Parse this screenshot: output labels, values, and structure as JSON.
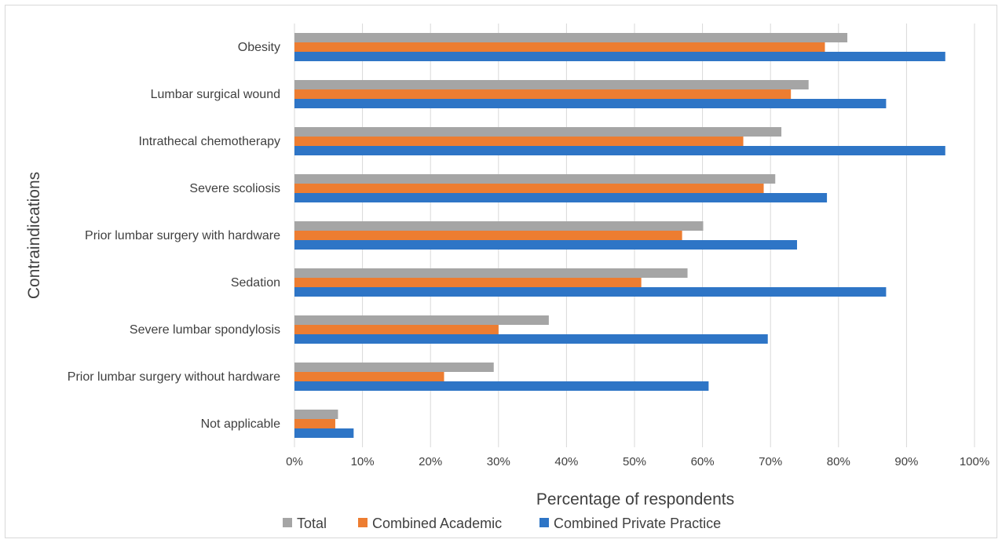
{
  "chart_data": {
    "type": "bar",
    "orientation": "horizontal",
    "title": "",
    "xlabel": "Percentage of respondents",
    "ylabel": "Contraindications",
    "xlim": [
      0,
      100
    ],
    "x_ticks": [
      "0%",
      "10%",
      "20%",
      "30%",
      "40%",
      "50%",
      "60%",
      "70%",
      "80%",
      "90%",
      "100%"
    ],
    "categories": [
      "Obesity",
      "Lumbar surgical wound",
      "Intrathecal chemotherapy",
      "Severe scoliosis",
      "Prior lumbar surgery with hardware",
      "Sedation",
      "Severe lumbar spondylosis",
      "Prior lumbar surgery without hardware",
      "Not applicable"
    ],
    "series": [
      {
        "name": "Total",
        "color": "#a5a5a5",
        "values": [
          81.3,
          75.6,
          71.6,
          70.7,
          60.1,
          57.8,
          37.4,
          29.3,
          6.4
        ]
      },
      {
        "name": "Combined Academic",
        "color": "#ed7d31",
        "values": [
          78,
          73,
          66,
          69,
          57,
          51,
          30,
          22,
          6
        ]
      },
      {
        "name": "Combined Private Practice",
        "color": "#2e75c6",
        "values": [
          95.7,
          87,
          95.7,
          78.3,
          73.9,
          87,
          69.6,
          60.9,
          8.7
        ]
      }
    ],
    "grid": true,
    "legend_position": "bottom"
  }
}
